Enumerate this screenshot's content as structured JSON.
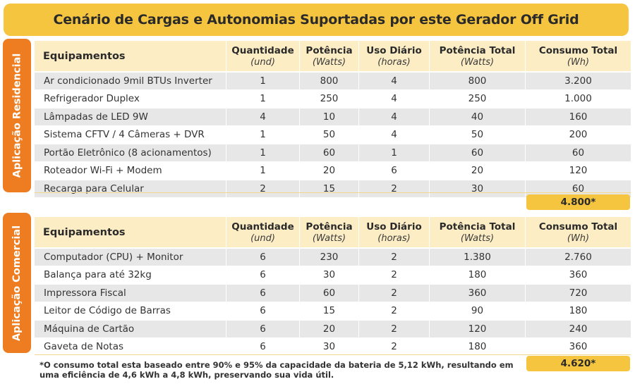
{
  "title": "Cenário de Cargas e Autonomias Suportadas por este Gerador Off Grid",
  "headers": {
    "equip": "Equipamentos",
    "qty": "Quantidade",
    "qty_unit": "(und)",
    "power": "Potência",
    "power_unit": "(Watts)",
    "use": "Uso Diário",
    "use_unit": "(horas)",
    "ptotal": "Potência Total",
    "ptotal_unit": "(Watts)",
    "ctotal": "Consumo Total",
    "ctotal_unit": "(Wh)"
  },
  "residential": {
    "label": "Aplicação Residencial",
    "rows": [
      [
        "Ar condicionado 9mil BTUs Inverter",
        "1",
        "800",
        "4",
        "800",
        "3.200"
      ],
      [
        "Refrigerador Duplex",
        "1",
        "250",
        "4",
        "250",
        "1.000"
      ],
      [
        "Lâmpadas de LED 9W",
        "4",
        "10",
        "4",
        "40",
        "160"
      ],
      [
        "Sistema CFTV / 4 Câmeras + DVR",
        "1",
        "50",
        "4",
        "50",
        "200"
      ],
      [
        "Portão Eletrônico (8 acionamentos)",
        "1",
        "60",
        "1",
        "60",
        "60"
      ],
      [
        "Roteador Wi-Fi + Modem",
        "1",
        "20",
        "6",
        "20",
        "120"
      ],
      [
        "Recarga para Celular",
        "2",
        "15",
        "2",
        "30",
        "60"
      ]
    ],
    "total": "4.800*"
  },
  "commercial": {
    "label": "Aplicação Comercial",
    "rows": [
      [
        "Computador (CPU) + Monitor",
        "6",
        "230",
        "2",
        "1.380",
        "2.760"
      ],
      [
        "Balança para até 32kg",
        "6",
        "30",
        "2",
        "180",
        "360"
      ],
      [
        "Impressora Fiscal",
        "6",
        "60",
        "2",
        "360",
        "720"
      ],
      [
        "Leitor de Código de Barras",
        "6",
        "15",
        "2",
        "90",
        "180"
      ],
      [
        "Máquina de Cartão",
        "6",
        "20",
        "2",
        "120",
        "240"
      ],
      [
        "Gaveta de Notas",
        "6",
        "30",
        "2",
        "180",
        "360"
      ]
    ],
    "total": "4.620*"
  },
  "footnote": "*O consumo total esta baseado entre 90% e 95% da capacidade da bateria de 5,12 kWh, resultando em uma eficiência de 4,6 kWh a 4,8 kWh, preservando sua vida útil.",
  "colors": {
    "accent_yellow": "#f6c53f",
    "accent_orange": "#ee7d22",
    "header_bg": "#fcedc4",
    "row_gray": "#e7e7e7"
  }
}
